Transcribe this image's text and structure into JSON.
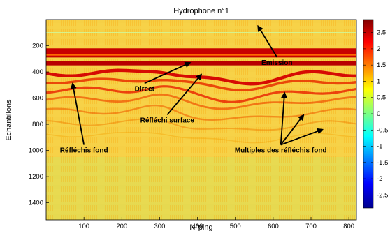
{
  "chart_data": {
    "type": "heatmap",
    "title": "Hydrophone n°1",
    "xlabel": "N°ping",
    "ylabel": "Echantillons",
    "xlim": [
      0,
      820
    ],
    "ylim": [
      1530,
      0
    ],
    "xticks": [
      100,
      200,
      300,
      400,
      500,
      600,
      700,
      800
    ],
    "yticks": [
      200,
      400,
      600,
      800,
      1000,
      1200,
      1400
    ],
    "colorbar": {
      "range": [
        -2.9,
        2.9
      ],
      "ticks": [
        2.5,
        2,
        1.5,
        1,
        0.5,
        0,
        -0.5,
        -1,
        -1.5,
        -2,
        -2.5
      ],
      "colormap": "jet"
    },
    "features": [
      {
        "name": "Emission",
        "depth": 330
      },
      {
        "name": "Direct",
        "depth": 370
      },
      {
        "name": "Réfléchi surface",
        "depth": 470
      },
      {
        "name": "Réfléchis fond",
        "depth": 560
      },
      {
        "name": "Multiples des réfléchis fond",
        "depth": 700
      }
    ],
    "annotations": [
      {
        "text": "Emission",
        "x": 610,
        "y": 330,
        "arrow_to": [
          560,
          50
        ]
      },
      {
        "text": "Direct",
        "x": 260,
        "y": 530,
        "arrow_to": [
          380,
          330
        ]
      },
      {
        "text": "Réfléchi surface",
        "x": 320,
        "y": 770,
        "arrow_to": [
          410,
          420
        ]
      },
      {
        "text": "Réfléchis fond",
        "x": 100,
        "y": 1000,
        "arrow_to": [
          70,
          490
        ]
      },
      {
        "text": "Multiples des réfléchis fond",
        "x": 620,
        "y": 1000,
        "arrows_to": [
          [
            630,
            560
          ],
          [
            680,
            730
          ],
          [
            730,
            840
          ]
        ]
      }
    ]
  }
}
